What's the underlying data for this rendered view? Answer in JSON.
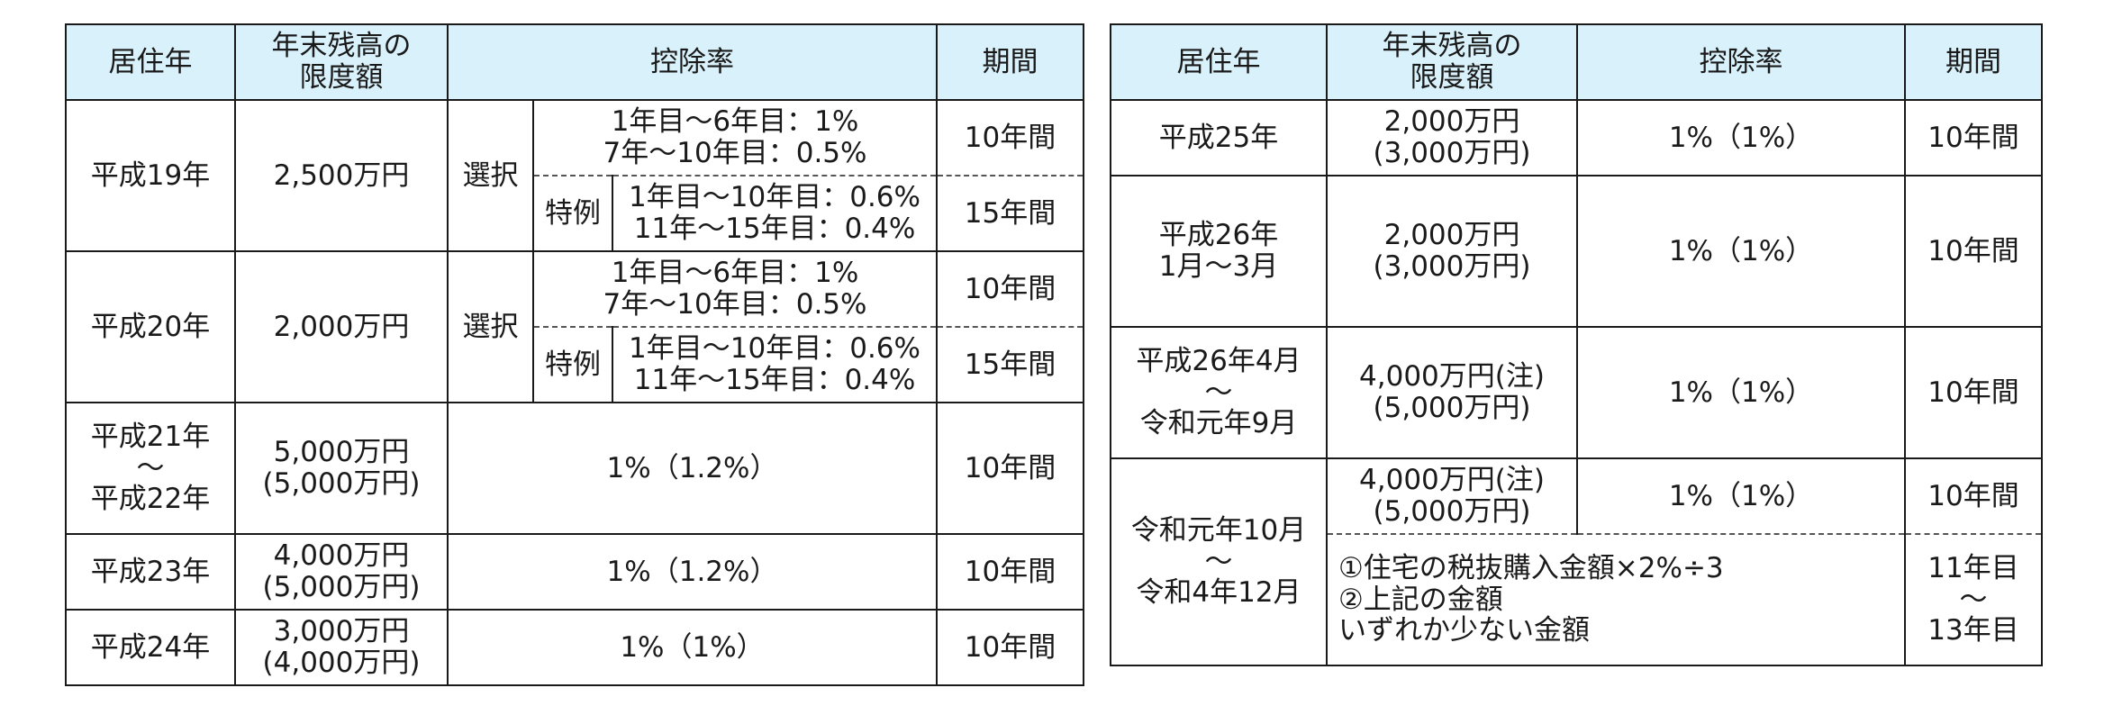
{
  "left_table": {
    "headers": {
      "year": "居住年",
      "limit": [
        "年末残高の",
        "限度額"
      ],
      "rate": "控除率",
      "period": "期間"
    },
    "h19": {
      "year": "平成19年",
      "limit": "2,500万円",
      "select_label": "選択",
      "normal": [
        "1年目～6年目：1%",
        "7年～10年目：0.5%"
      ],
      "normal_period": "10年間",
      "special_label": "特例",
      "special": [
        "1年目～10年目：0.6%",
        "11年～15年目：0.4%"
      ],
      "special_period": "15年間"
    },
    "h20": {
      "year": "平成20年",
      "limit": "2,000万円",
      "select_label": "選択",
      "normal": [
        "1年目～6年目：1%",
        "7年～10年目：0.5%"
      ],
      "normal_period": "10年間",
      "special_label": "特例",
      "special": [
        "1年目～10年目：0.6%",
        "11年～15年目：0.4%"
      ],
      "special_period": "15年間"
    },
    "h21": {
      "year": [
        "平成21年",
        "～",
        "平成22年"
      ],
      "limit": [
        "5,000万円",
        "(5,000万円)"
      ],
      "rate": "1%（1.2%）",
      "period": "10年間"
    },
    "h23": {
      "year": "平成23年",
      "limit": [
        "4,000万円",
        "(5,000万円)"
      ],
      "rate": "1%（1.2%）",
      "period": "10年間"
    },
    "h24": {
      "year": "平成24年",
      "limit": [
        "3,000万円",
        "(4,000万円)"
      ],
      "rate": "1%（1%）",
      "period": "10年間"
    }
  },
  "right_table": {
    "headers": {
      "year": "居住年",
      "limit": [
        "年末残高の",
        "限度額"
      ],
      "rate": "控除率",
      "period": "期間"
    },
    "h25": {
      "year": "平成25年",
      "limit": [
        "2,000万円",
        "(3,000万円)"
      ],
      "rate": "1%（1%）",
      "period": "10年間"
    },
    "h26a": {
      "year": [
        "平成26年",
        "1月～3月"
      ],
      "limit": [
        "2,000万円",
        "(3,000万円)"
      ],
      "rate": "1%（1%）",
      "period": "10年間"
    },
    "h26b": {
      "year": [
        "平成26年4月",
        "～",
        "令和元年9月"
      ],
      "limit": [
        "4,000万円(注)",
        "(5,000万円)"
      ],
      "rate": "1%（1%）",
      "period": "10年間"
    },
    "r1": {
      "year": [
        "令和元年10月",
        "～",
        "令和4年12月"
      ],
      "limit": [
        "4,000万円(注)",
        "(5,000万円)"
      ],
      "rate": "1%（1%）",
      "period": "10年間",
      "extra": [
        "①住宅の税抜購入金額×2%÷3",
        "②上記の金額",
        "いずれか少ない金額"
      ],
      "extra_period": [
        "11年目",
        "～",
        "13年目"
      ]
    }
  }
}
